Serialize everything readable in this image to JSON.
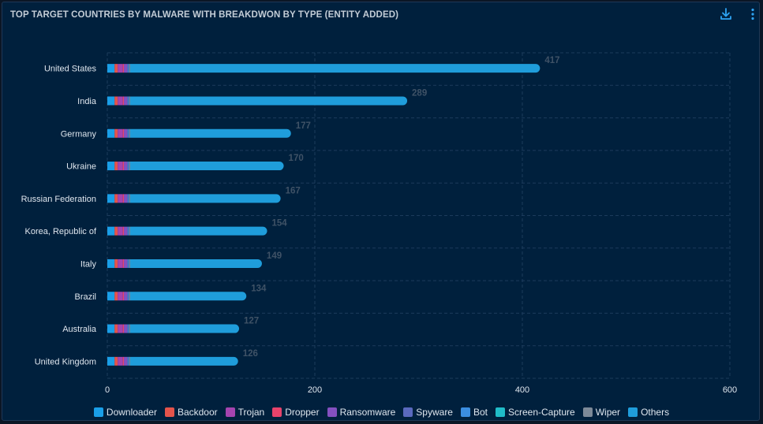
{
  "header": {
    "title": "TOP TARGET COUNTRIES BY MALWARE WITH BREAKDWON BY TYPE (ENTITY ADDED)"
  },
  "toolbar": {
    "download_icon": "download-icon",
    "more_icon": "more-vertical-icon"
  },
  "chart_data": {
    "type": "bar",
    "orientation": "horizontal",
    "stacked": true,
    "title": "TOP TARGET COUNTRIES BY MALWARE WITH BREAKDWON BY TYPE (ENTITY ADDED)",
    "xlabel": "",
    "ylabel": "",
    "xlim": [
      0,
      600
    ],
    "xticks": [
      0,
      200,
      400,
      600
    ],
    "grid": true,
    "legend_position": "bottom",
    "categories": [
      "United States",
      "India",
      "Germany",
      "Ukraine",
      "Russian Federation",
      "Korea, Republic of",
      "Italy",
      "Brazil",
      "Australia",
      "United Kingdom"
    ],
    "totals": [
      417,
      289,
      177,
      170,
      167,
      154,
      149,
      134,
      127,
      126
    ],
    "series": [
      {
        "name": "Downloader",
        "color": "#1a9fe8",
        "values": [
          7,
          7,
          7,
          7,
          7,
          7,
          7,
          7,
          7,
          7
        ]
      },
      {
        "name": "Backdoor",
        "color": "#e5544b",
        "values": [
          3,
          3,
          3,
          3,
          3,
          3,
          3,
          3,
          3,
          3
        ]
      },
      {
        "name": "Trojan",
        "color": "#a544b0",
        "values": [
          5,
          5,
          5,
          5,
          5,
          5,
          5,
          5,
          5,
          5
        ]
      },
      {
        "name": "Dropper",
        "color": "#e8436b",
        "values": [
          1,
          1,
          1,
          1,
          1,
          1,
          1,
          1,
          1,
          1
        ]
      },
      {
        "name": "Ransomware",
        "color": "#8450c0",
        "values": [
          3,
          3,
          3,
          3,
          3,
          3,
          3,
          3,
          3,
          3
        ]
      },
      {
        "name": "Spyware",
        "color": "#5a69be",
        "values": [
          1,
          1,
          1,
          1,
          1,
          1,
          1,
          1,
          1,
          1
        ]
      },
      {
        "name": "Bot",
        "color": "#3b8ee0",
        "values": [
          1,
          1,
          1,
          1,
          1,
          1,
          1,
          1,
          1,
          1
        ]
      },
      {
        "name": "Screen-Capture",
        "color": "#20bcc8",
        "values": [
          0,
          0,
          0,
          0,
          0,
          0,
          0,
          0,
          0,
          0
        ]
      },
      {
        "name": "Wiper",
        "color": "#7d8a98",
        "values": [
          1,
          1,
          1,
          1,
          1,
          1,
          1,
          1,
          1,
          1
        ]
      },
      {
        "name": "Others",
        "color": "#1f9ddb",
        "values": [
          395,
          267,
          155,
          148,
          145,
          132,
          127,
          112,
          105,
          104
        ]
      }
    ]
  }
}
